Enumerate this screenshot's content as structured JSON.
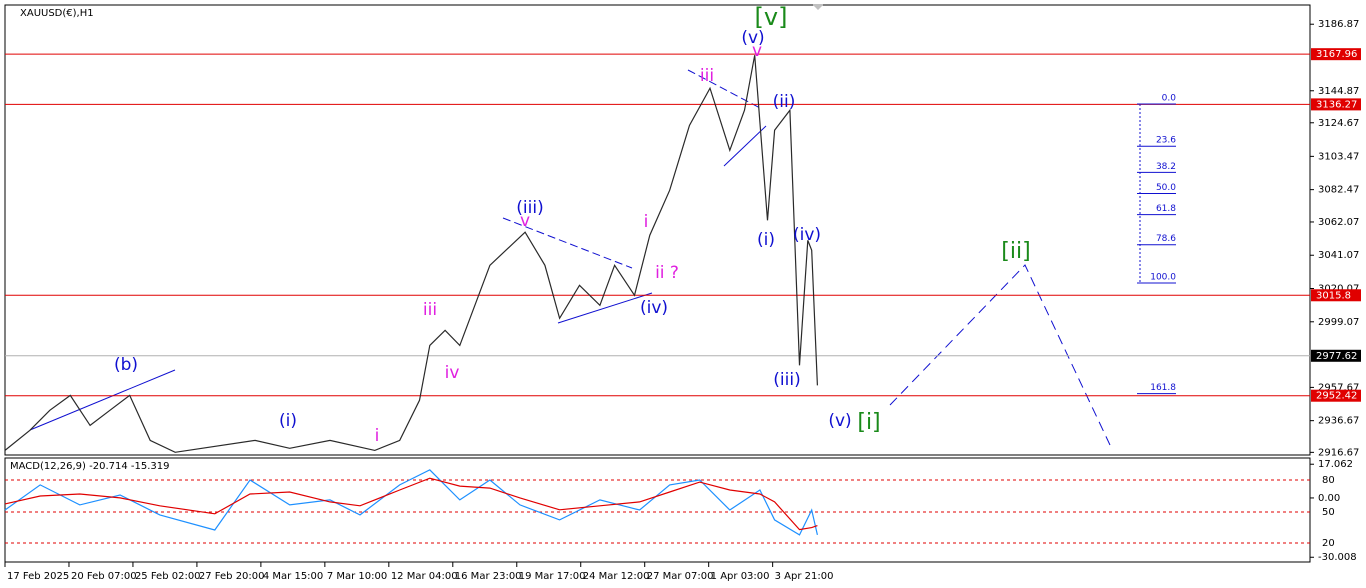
{
  "chart_data": [
    {
      "type": "line",
      "title": "XAUUSD(€),H1",
      "x": [
        0,
        0.39,
        0.7,
        1.02,
        1.33,
        1.64,
        1.95,
        2.27,
        2.66,
        3.91,
        4.45,
        5.08,
        5.78,
        6.17,
        6.48,
        6.64,
        6.88,
        7.11,
        7.58,
        8.13,
        8.44,
        8.67,
        8.98,
        9.3,
        9.53,
        9.84,
        10.08,
        10.39,
        10.7,
        11.02,
        11.33,
        11.56,
        11.72,
        11.92,
        12.03,
        12.27,
        12.42,
        12.55,
        12.61,
        12.7
      ],
      "series": [
        {
          "color": "#2a2a2a",
          "values": [
            2917.9,
            2930.6,
            2943.2,
            2952.6,
            2933.7,
            2943.2,
            2952.6,
            2924.2,
            2916.7,
            2924.2,
            2919.2,
            2924.2,
            2917.9,
            2924.2,
            2949.5,
            2984.2,
            2993.7,
            2984.2,
            3034.7,
            3055.6,
            3034.7,
            3001.3,
            3022.1,
            3009.5,
            3034.7,
            3015.8,
            3053.7,
            3082.1,
            3123.1,
            3146.5,
            3107.3,
            3132.6,
            3167.3,
            3063.1,
            3120.0,
            3132.6,
            2971.6,
            3050.5,
            3044.2,
            2958.9
          ]
        }
      ],
      "xlim": [
        0,
        20.4
      ],
      "xticks": [
        {
          "value": 0,
          "label": "17 Feb 2025"
        },
        {
          "value": 1,
          "label": "20 Feb 07:00"
        },
        {
          "value": 2,
          "label": "25 Feb 02:00"
        },
        {
          "value": 3,
          "label": "27 Feb 20:00"
        },
        {
          "value": 4,
          "label": "4 Mar 15:00"
        },
        {
          "value": 5,
          "label": "7 Mar 10:00"
        },
        {
          "value": 6,
          "label": "12 Mar 04:00"
        },
        {
          "value": 7,
          "label": "16 Mar 23:00"
        },
        {
          "value": 8,
          "label": "19 Mar 17:00"
        },
        {
          "value": 9,
          "label": "24 Mar 12:00"
        },
        {
          "value": 10,
          "label": "27 Mar 07:00"
        },
        {
          "value": 11,
          "label": "1 Apr 03:00"
        },
        {
          "value": 12,
          "label": "3 Apr 21:00"
        }
      ],
      "ylim": [
        2915,
        3199
      ],
      "yticks": [
        3186.87,
        3144.87,
        3124.67,
        3103.47,
        3082.47,
        3062.07,
        3041.07,
        3020.07,
        2999.07,
        2957.67,
        2936.67,
        2916.67
      ],
      "price_lines": [
        {
          "value": 3167.96,
          "color": "#e00000"
        },
        {
          "value": 3136.27,
          "color": "#e00000"
        },
        {
          "value": 3015.8,
          "color": "#e00000"
        },
        {
          "value": 2977.62,
          "color": "#b0b0b0"
        },
        {
          "value": 2952.42,
          "color": "#e00000"
        }
      ],
      "annotations": [
        {
          "text": "[v]",
          "color": "#1a8a1a"
        },
        {
          "text": "(v)",
          "color": "#1010d0"
        },
        {
          "text": "v",
          "color": "#e020e0"
        },
        {
          "text": "iii",
          "color": "#e020e0"
        },
        {
          "text": "(ii)",
          "color": "#1010d0"
        },
        {
          "text": "(iii)",
          "color": "#1010d0"
        },
        {
          "text": "v",
          "color": "#e020e0"
        },
        {
          "text": "i",
          "color": "#e020e0"
        },
        {
          "text": "ii ?",
          "color": "#e020e0"
        },
        {
          "text": "(iv)",
          "color": "#1010d0"
        },
        {
          "text": "(i)",
          "color": "#1010d0"
        },
        {
          "text": "(iv)",
          "color": "#1010d0"
        },
        {
          "text": "(iii)",
          "color": "#1010d0"
        },
        {
          "text": "(v)",
          "color": "#1010d0"
        },
        {
          "text": "[i]",
          "color": "#1a8a1a"
        },
        {
          "text": "[ii]",
          "color": "#1a8a1a"
        },
        {
          "text": "iii",
          "color": "#e020e0"
        },
        {
          "text": "iv",
          "color": "#e020e0"
        },
        {
          "text": "(b)",
          "color": "#1010d0"
        },
        {
          "text": "(i)",
          "color": "#1010d0"
        },
        {
          "text": "i",
          "color": "#e020e0"
        }
      ],
      "fibonacci": {
        "color": "#1010d0",
        "levels": [
          {
            "value": 0,
            "label": "0.0"
          },
          23.6,
          38.2,
          {
            "value": 50,
            "label": "50.0"
          },
          61.8,
          78.6,
          {
            "value": 100,
            "label": "100.0"
          },
          161.8
        ]
      }
    },
    {
      "type": "macd",
      "title": "MACD(12,26,9) -20.714 -15.319",
      "x": [
        0,
        0.55,
        1.17,
        1.8,
        2.42,
        3.28,
        3.83,
        4.45,
        5.08,
        5.55,
        6.17,
        6.64,
        7.11,
        7.58,
        8.05,
        8.67,
        9.3,
        9.92,
        10.39,
        10.86,
        11.33,
        11.8,
        12.03,
        12.42,
        12.61,
        12.7
      ],
      "series": [
        {
          "color": "#1e90ff",
          "values": [
            -6.1,
            6.6,
            -3.5,
            1.5,
            -8.6,
            -16.2,
            9.1,
            -3.5,
            -1.0,
            -8.6,
            6.6,
            14.2,
            -1.0,
            9.1,
            -3.5,
            -11.1,
            -1.0,
            -6.1,
            6.6,
            9.1,
            -6.1,
            4.0,
            -11.1,
            -18.7,
            -6.1,
            -18.7
          ]
        },
        {
          "color": "#e00000",
          "values": [
            -3,
            1,
            2,
            0,
            -4,
            -8,
            2,
            3,
            -2,
            -4,
            4,
            10,
            6,
            5,
            0,
            -6,
            -4,
            -2,
            3,
            8,
            4,
            2,
            -2,
            -16,
            -15,
            -14
          ]
        }
      ],
      "xlim": [
        0,
        20.4
      ],
      "ylim": [
        -31.4,
        19.2
      ],
      "yticks": [
        17.062,
        {
          "value": 0,
          "label": "0.00"
        },
        -30.008
      ],
      "level_labels": [
        "80",
        "50",
        "20"
      ]
    }
  ]
}
